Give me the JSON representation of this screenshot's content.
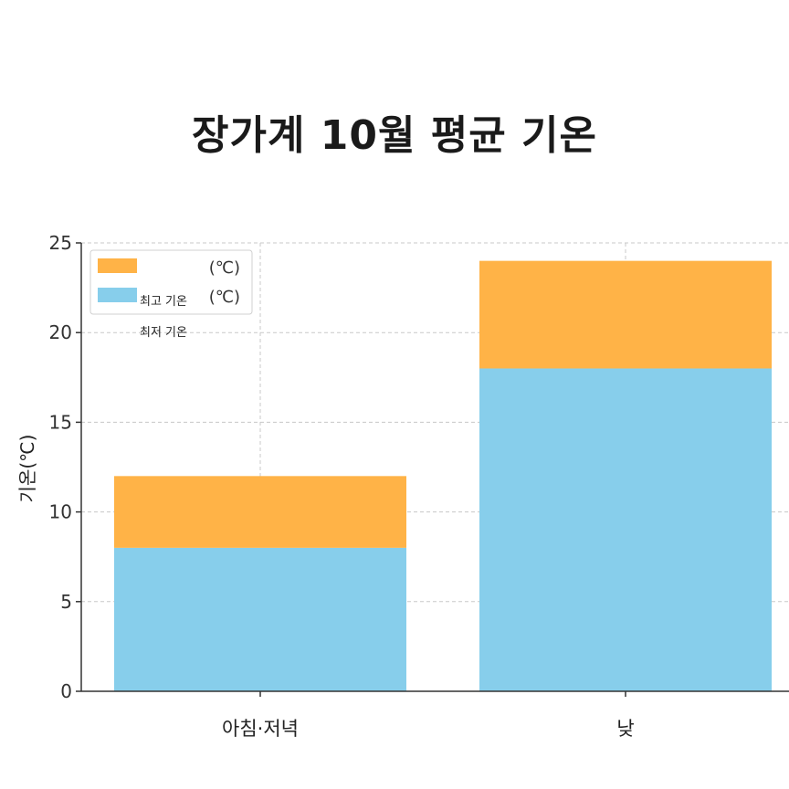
{
  "chart_data": {
    "type": "bar",
    "stacked": true,
    "title": "장가계 10월 평균 기온",
    "xlabel": "",
    "ylabel": "기온(℃)",
    "ylim": [
      0,
      25
    ],
    "yticks": [
      0,
      5,
      10,
      15,
      20,
      25
    ],
    "grid": true,
    "legend_position": "top-left",
    "categories": [
      "아침·저녁",
      "낮"
    ],
    "series": [
      {
        "name": "최저 기온",
        "values": [
          8,
          18
        ],
        "color": "#87CEEB"
      },
      {
        "name": "최고 기온",
        "values": [
          4,
          6
        ],
        "color": "#FFB347"
      }
    ],
    "legend": {
      "entries": [
        {
          "text": "(℃)",
          "color": "#FFB347"
        },
        {
          "text": "(℃)",
          "color": "#87CEEB"
        }
      ],
      "notes": [
        "최고 기온",
        "최저 기온"
      ]
    }
  }
}
